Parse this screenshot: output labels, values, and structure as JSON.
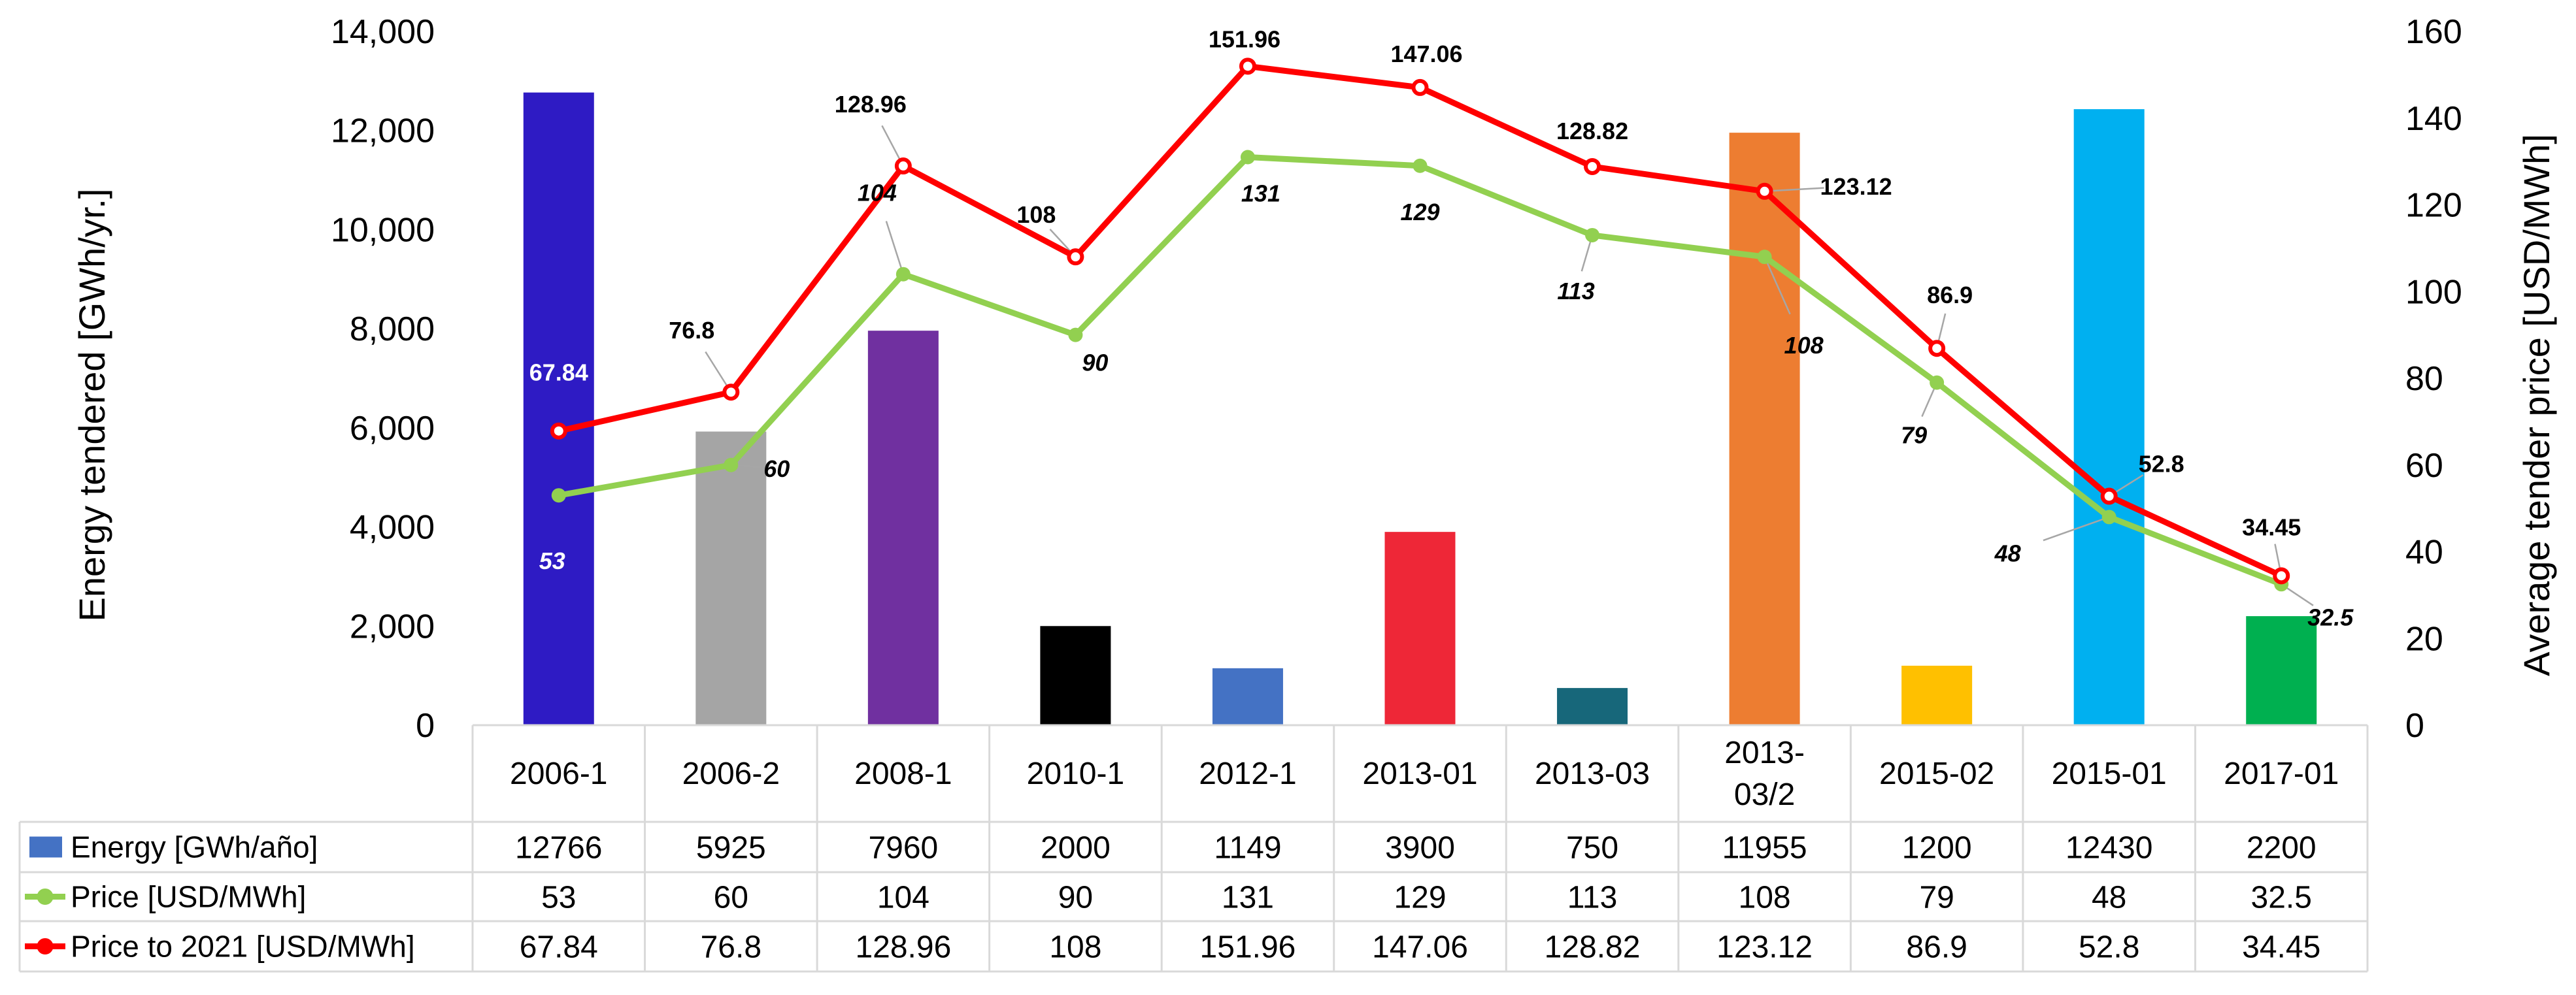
{
  "chart_data": {
    "type": "bar+line",
    "categories": [
      "2006-1",
      "2006-2",
      "2008-1",
      "2010-1",
      "2012-1",
      "2013-01",
      "2013-03",
      "2013-03/2",
      "2015-02",
      "2015-01",
      "2017-01"
    ],
    "category_display": [
      [
        "2006-1"
      ],
      [
        "2006-2"
      ],
      [
        "2008-1"
      ],
      [
        "2010-1"
      ],
      [
        "2012-1"
      ],
      [
        "2013-01"
      ],
      [
        "2013-03"
      ],
      [
        "2013-",
        "03/2"
      ],
      [
        "2015-02"
      ],
      [
        "2015-01"
      ],
      [
        "2017-01"
      ]
    ],
    "bars": {
      "name": "Energy  [GWh/año]",
      "axis": "left",
      "values": [
        12766,
        5925,
        7960,
        2000,
        1149,
        3900,
        750,
        11955,
        1200,
        12430,
        2200
      ],
      "colors": [
        "#2e1bc4",
        "#a5a5a5",
        "#7030a0",
        "#000000",
        "#4472c4",
        "#ee2737",
        "#17677a",
        "#ed7d31",
        "#ffc000",
        "#00b0f0",
        "#00b050"
      ],
      "legend_color": "#4472c4"
    },
    "series": [
      {
        "name": "Price   [USD/MWh]",
        "axis": "right",
        "color": "#92d050",
        "values": [
          53,
          60,
          104,
          90,
          131,
          129,
          113,
          108,
          79,
          48,
          32.5
        ],
        "labels": [
          "53",
          "60",
          "104",
          "90",
          "131",
          "129",
          "113",
          "108",
          "79",
          "48",
          "32.5"
        ]
      },
      {
        "name": "Price to  2021 [USD/MWh]",
        "axis": "right",
        "color": "#ff0000",
        "values": [
          67.84,
          76.8,
          128.96,
          108,
          151.96,
          147.06,
          128.82,
          123.12,
          86.9,
          52.8,
          34.45
        ],
        "labels": [
          "67.84",
          "76.8",
          "128.96",
          "108",
          "151.96",
          "147.06",
          "128.82",
          "123.12",
          "86.9",
          "52.8",
          "34.45"
        ]
      }
    ],
    "table_rows": [
      [
        "12766",
        "5925",
        "7960",
        "2000",
        "1149",
        "3900",
        "750",
        "11955",
        "1200",
        "12430",
        "2200"
      ],
      [
        "53",
        "60",
        "104",
        "90",
        "131",
        "129",
        "113",
        "108",
        "79",
        "48",
        "32.5"
      ],
      [
        "67.84",
        "76.8",
        "128.96",
        "108",
        "151.96",
        "147.06",
        "128.82",
        "123.12",
        "86.9",
        "52.8",
        "34.45"
      ]
    ],
    "ylabel_left": "Energy tendered [GWh/yr.]",
    "ylabel_right": "Average tender price [USD/MWh]",
    "ylim_left": [
      0,
      14000
    ],
    "ylim_right": [
      0,
      160
    ],
    "yticks_left": [
      "0",
      "2,000",
      "4,000",
      "6,000",
      "8,000",
      "10,000",
      "12,000",
      "14,000"
    ],
    "yticks_right": [
      "0",
      "20",
      "40",
      "60",
      "80",
      "100",
      "120",
      "140",
      "160"
    ],
    "grid": false,
    "legend": "data-table"
  }
}
